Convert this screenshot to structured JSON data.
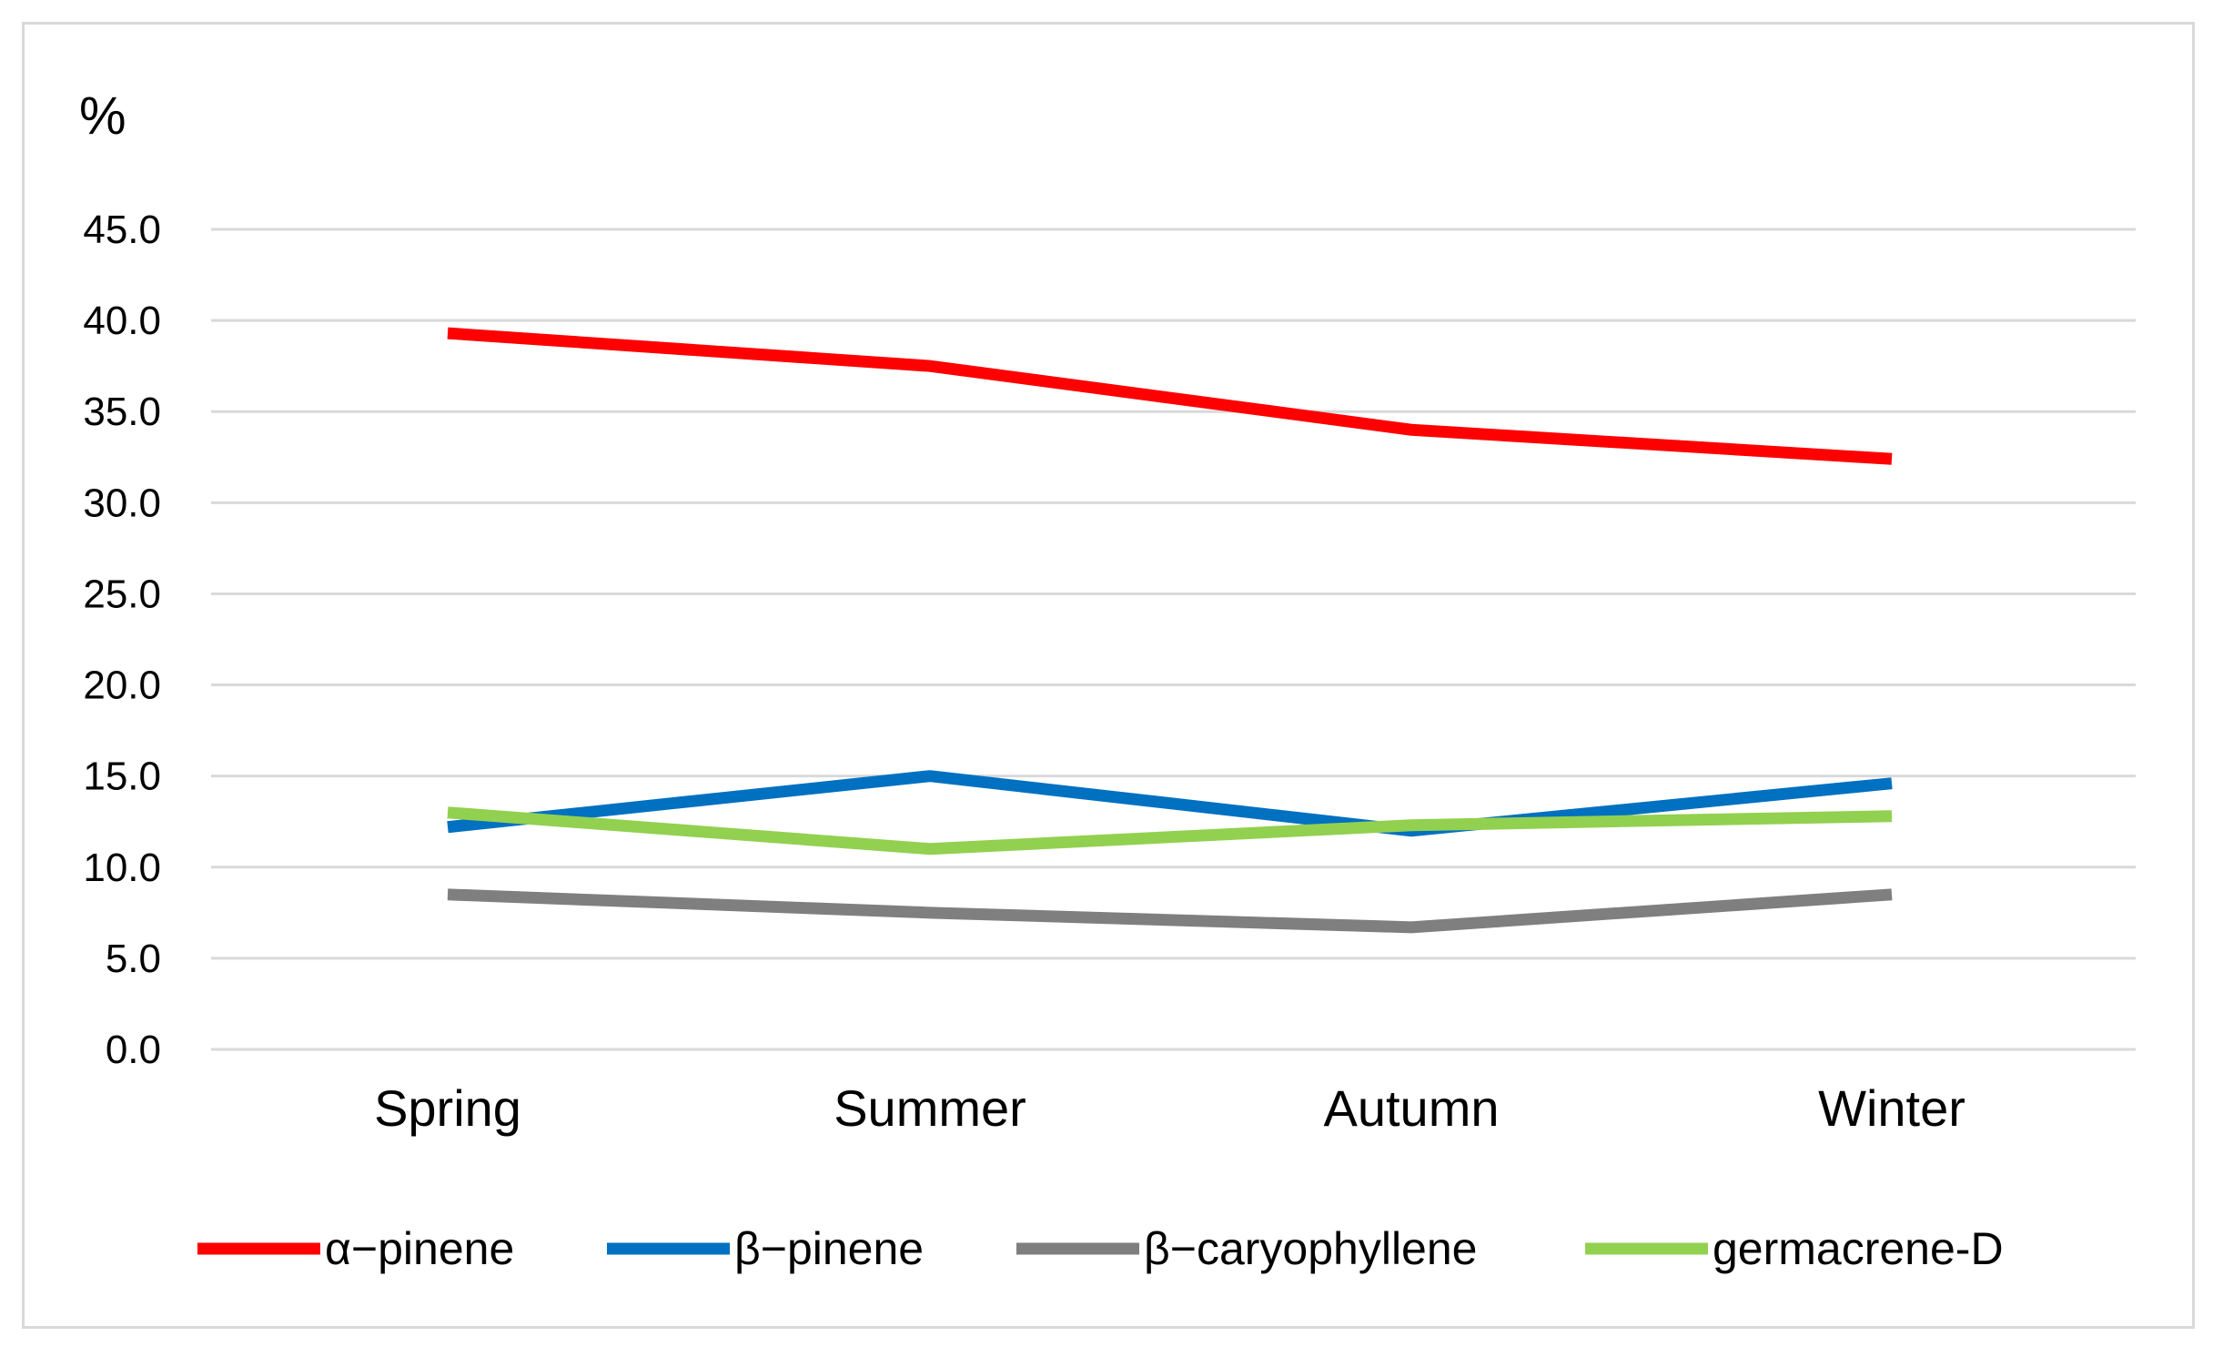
{
  "chart_data": {
    "type": "line",
    "ylabel": "%",
    "ylim": [
      0,
      45
    ],
    "yticks": [
      "0.0",
      "5.0",
      "10.0",
      "15.0",
      "20.0",
      "25.0",
      "30.0",
      "35.0",
      "40.0",
      "45.0"
    ],
    "grid": true,
    "legend_position": "bottom",
    "categories": [
      "Spring",
      "Summer",
      "Autumn",
      "Winter"
    ],
    "series": [
      {
        "name": "α−pinene",
        "color": "#ff0000",
        "values": [
          39.3,
          37.5,
          34.0,
          32.4
        ]
      },
      {
        "name": "β−pinene",
        "color": "#0070c0",
        "values": [
          12.2,
          15.0,
          12.0,
          14.6
        ]
      },
      {
        "name": "β−caryophyllene",
        "color": "#7f7f7f",
        "values": [
          8.5,
          7.5,
          6.7,
          8.5
        ]
      },
      {
        "name": "germacrene-D",
        "color": "#92d050",
        "values": [
          13.0,
          11.0,
          12.3,
          12.8
        ]
      }
    ]
  }
}
